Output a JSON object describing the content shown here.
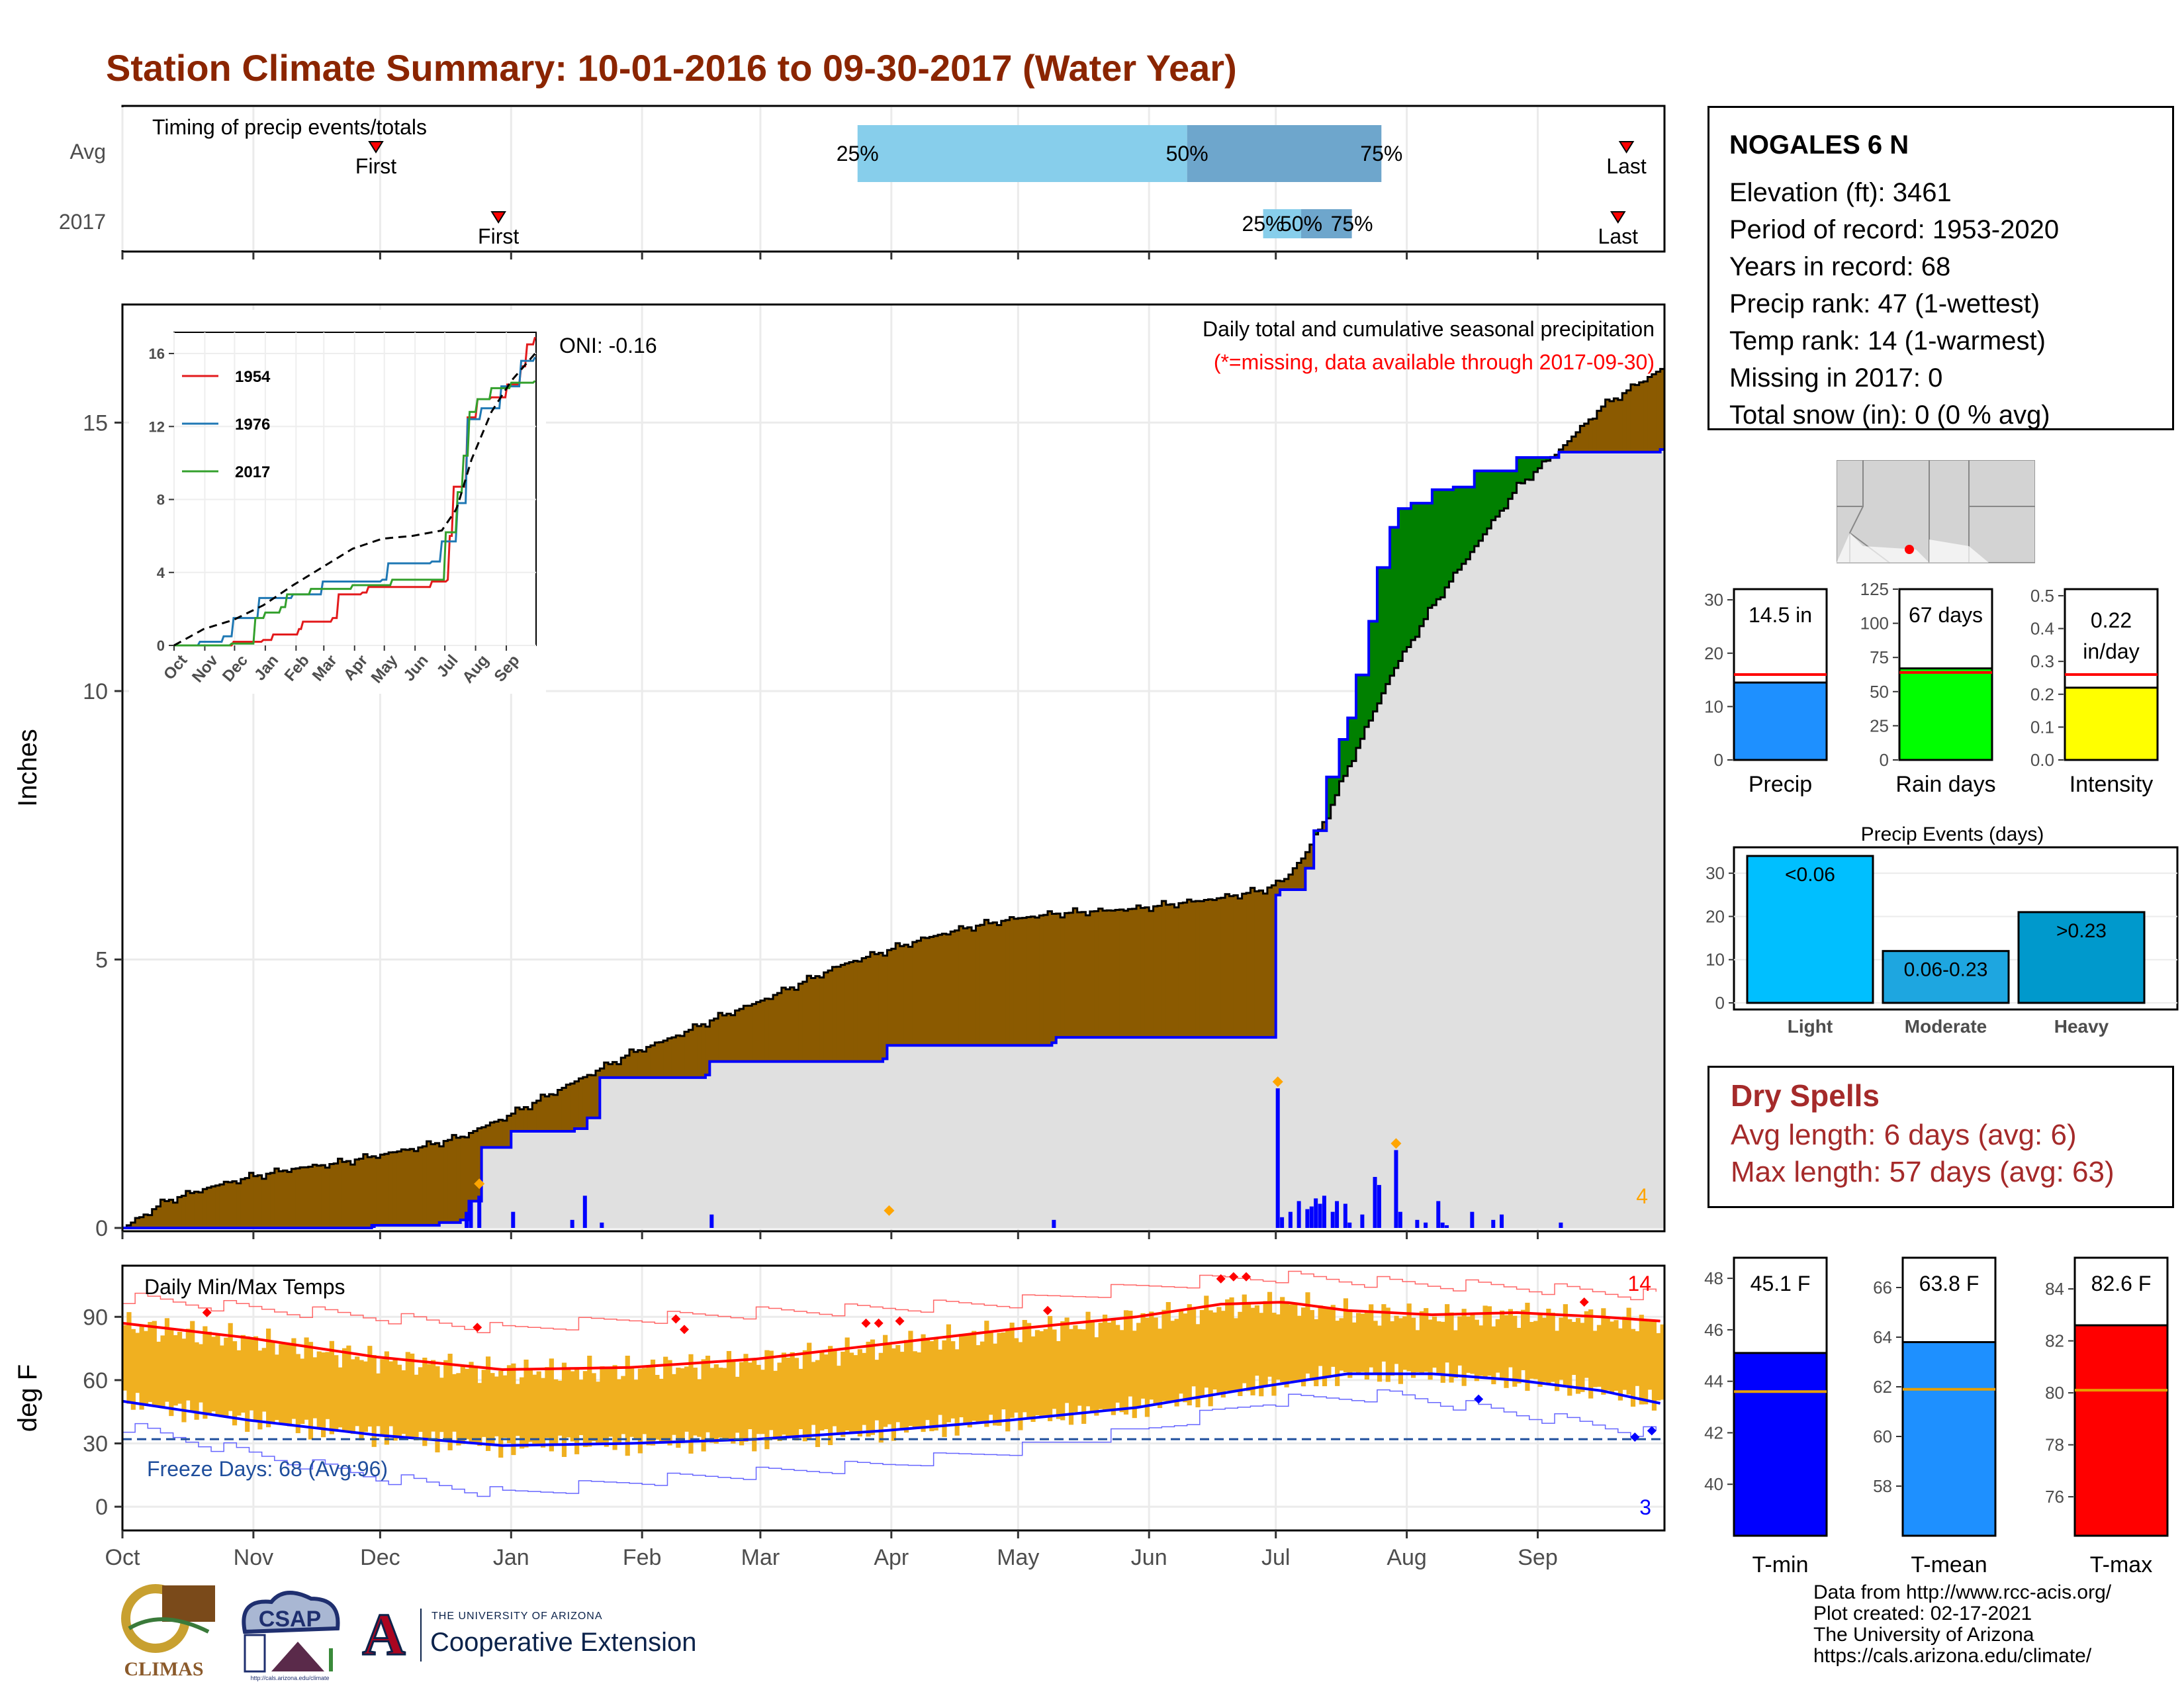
{
  "title": "Station Climate Summary: 10-01-2016 to 09-30-2017 (Water Year)",
  "timing": {
    "label": "Timing of precip events/totals",
    "rows": [
      "Avg",
      "2017"
    ],
    "first_label": "First",
    "last_label": "Last",
    "pct": [
      "25%",
      "50%",
      "75%"
    ],
    "avg": {
      "first_day": 60,
      "last_day": 356,
      "p25": 174,
      "p50": 252,
      "p75": 298
    },
    "y2017": {
      "first_day": 89,
      "last_day": 354,
      "p25": 270,
      "p50": 279,
      "p75": 291
    },
    "colors": {
      "light": "#87ceeb",
      "dark": "#6ea6cc",
      "marker": "#ff0000"
    }
  },
  "precip_panel": {
    "ylabel": "Inches",
    "ymax": 17.2,
    "yticks": [
      0,
      5,
      10,
      15
    ],
    "title": "Daily total and cumulative seasonal precipitation",
    "subtitle": "(*=missing, data available through 2017-09-30)",
    "oni": "ONI: -0.16",
    "count_label": "4",
    "colors": {
      "avg_fill": "#8b5a00",
      "above_fill": "#008000",
      "base_fill": "#e0e0e0",
      "line": "#0000ff",
      "marker": "#ffa500"
    },
    "avg_cumulative": [
      [
        0,
        0
      ],
      [
        10,
        0.5
      ],
      [
        20,
        0.75
      ],
      [
        30,
        0.95
      ],
      [
        40,
        1.1
      ],
      [
        50,
        1.2
      ],
      [
        60,
        1.35
      ],
      [
        70,
        1.5
      ],
      [
        80,
        1.7
      ],
      [
        90,
        2.05
      ],
      [
        100,
        2.45
      ],
      [
        110,
        2.85
      ],
      [
        120,
        3.25
      ],
      [
        130,
        3.55
      ],
      [
        140,
        3.9
      ],
      [
        150,
        4.2
      ],
      [
        160,
        4.55
      ],
      [
        170,
        4.9
      ],
      [
        180,
        5.15
      ],
      [
        190,
        5.4
      ],
      [
        200,
        5.6
      ],
      [
        210,
        5.75
      ],
      [
        220,
        5.85
      ],
      [
        230,
        5.9
      ],
      [
        240,
        5.95
      ],
      [
        250,
        6.05
      ],
      [
        260,
        6.15
      ],
      [
        270,
        6.3
      ],
      [
        275,
        6.5
      ],
      [
        280,
        7.0
      ],
      [
        285,
        7.7
      ],
      [
        290,
        8.6
      ],
      [
        300,
        10.3
      ],
      [
        310,
        11.6
      ],
      [
        320,
        12.7
      ],
      [
        330,
        13.8
      ],
      [
        340,
        14.5
      ],
      [
        350,
        15.3
      ],
      [
        360,
        15.8
      ],
      [
        364,
        16.0
      ]
    ],
    "obs_cumulative": [
      [
        0,
        0
      ],
      [
        58,
        0
      ],
      [
        59,
        0.05
      ],
      [
        75,
        0.1
      ],
      [
        80,
        0.15
      ],
      [
        82,
        0.5
      ],
      [
        85,
        1.5
      ],
      [
        92,
        1.8
      ],
      [
        107,
        1.85
      ],
      [
        110,
        2.05
      ],
      [
        113,
        2.8
      ],
      [
        138,
        2.85
      ],
      [
        139,
        3.1
      ],
      [
        180,
        3.15
      ],
      [
        181,
        3.4
      ],
      [
        220,
        3.45
      ],
      [
        221,
        3.55
      ],
      [
        272,
        3.55
      ],
      [
        273,
        6.2
      ],
      [
        274,
        6.3
      ],
      [
        280,
        6.7
      ],
      [
        282,
        7.4
      ],
      [
        285,
        8.4
      ],
      [
        288,
        9.1
      ],
      [
        290,
        9.5
      ],
      [
        292,
        10.3
      ],
      [
        295,
        11.3
      ],
      [
        297,
        12.3
      ],
      [
        300,
        13.05
      ],
      [
        302,
        13.4
      ],
      [
        305,
        13.5
      ],
      [
        310,
        13.75
      ],
      [
        315,
        13.8
      ],
      [
        320,
        14.1
      ],
      [
        330,
        14.35
      ],
      [
        340,
        14.45
      ],
      [
        364,
        14.5
      ]
    ],
    "daily_bars": [
      [
        59,
        0.05
      ],
      [
        81,
        0.3
      ],
      [
        82,
        0.5
      ],
      [
        84,
        0.6
      ],
      [
        92,
        0.3
      ],
      [
        106,
        0.15
      ],
      [
        109,
        0.6
      ],
      [
        113,
        0.1
      ],
      [
        139,
        0.25
      ],
      [
        220,
        0.15
      ],
      [
        273,
        2.6
      ],
      [
        274,
        0.2
      ],
      [
        276,
        0.3
      ],
      [
        278,
        0.5
      ],
      [
        280,
        0.35
      ],
      [
        281,
        0.4
      ],
      [
        282,
        0.55
      ],
      [
        283,
        0.45
      ],
      [
        284,
        0.6
      ],
      [
        286,
        0.3
      ],
      [
        287,
        0.5
      ],
      [
        289,
        0.45
      ],
      [
        290,
        0.1
      ],
      [
        293,
        0.25
      ],
      [
        296,
        0.95
      ],
      [
        297,
        0.8
      ],
      [
        301,
        1.45
      ],
      [
        302,
        0.3
      ],
      [
        306,
        0.15
      ],
      [
        308,
        0.1
      ],
      [
        311,
        0.5
      ],
      [
        312,
        0.1
      ],
      [
        313,
        0.05
      ],
      [
        319,
        0.3
      ],
      [
        324,
        0.15
      ],
      [
        326,
        0.25
      ],
      [
        340,
        0.1
      ]
    ],
    "markers": [
      [
        84,
        0.7
      ],
      [
        181,
        0.2
      ],
      [
        273,
        2.6
      ],
      [
        301,
        1.45
      ]
    ],
    "months": [
      "Oct",
      "Nov",
      "Dec",
      "Jan",
      "Feb",
      "Mar",
      "Apr",
      "May",
      "Jun",
      "Jul",
      "Aug",
      "Sep"
    ],
    "month_starts": [
      0,
      31,
      61,
      92,
      123,
      151,
      182,
      212,
      243,
      273,
      304,
      335
    ]
  },
  "inset": {
    "yticks": [
      0,
      4,
      8,
      12,
      16
    ],
    "series": [
      {
        "name": "1954",
        "color": "#e31a1c",
        "values": [
          [
            0,
            0
          ],
          [
            40,
            0
          ],
          [
            60,
            0.2
          ],
          [
            90,
            0.3
          ],
          [
            100,
            0.6
          ],
          [
            110,
            0.6
          ],
          [
            125,
            0.9
          ],
          [
            130,
            1.3
          ],
          [
            160,
            1.5
          ],
          [
            165,
            2.8
          ],
          [
            190,
            2.9
          ],
          [
            195,
            3.2
          ],
          [
            255,
            3.2
          ],
          [
            260,
            3.5
          ],
          [
            275,
            3.6
          ],
          [
            278,
            6.0
          ],
          [
            282,
            8.7
          ],
          [
            295,
            12.5
          ],
          [
            305,
            13.5
          ],
          [
            320,
            13.6
          ],
          [
            335,
            14.3
          ],
          [
            350,
            15.3
          ],
          [
            355,
            16.5
          ],
          [
            364,
            16.9
          ]
        ]
      },
      {
        "name": "1976",
        "color": "#1f78b4",
        "values": [
          [
            0,
            0
          ],
          [
            25,
            0.2
          ],
          [
            50,
            0.5
          ],
          [
            60,
            1.5
          ],
          [
            75,
            1.5
          ],
          [
            85,
            2.6
          ],
          [
            110,
            2.6
          ],
          [
            120,
            2.8
          ],
          [
            140,
            2.8
          ],
          [
            150,
            3.5
          ],
          [
            210,
            3.6
          ],
          [
            215,
            4.5
          ],
          [
            260,
            4.6
          ],
          [
            270,
            5.7
          ],
          [
            285,
            7.8
          ],
          [
            295,
            12.4
          ],
          [
            310,
            13.0
          ],
          [
            330,
            14.2
          ],
          [
            350,
            15.6
          ],
          [
            364,
            15.8
          ]
        ]
      },
      {
        "name": "2017",
        "color": "#33a02c",
        "values": [
          [
            0,
            0
          ],
          [
            58,
            0.1
          ],
          [
            82,
            1.5
          ],
          [
            92,
            1.8
          ],
          [
            107,
            2.1
          ],
          [
            113,
            2.8
          ],
          [
            138,
            3.1
          ],
          [
            180,
            3.3
          ],
          [
            220,
            3.6
          ],
          [
            272,
            3.6
          ],
          [
            273,
            6.2
          ],
          [
            285,
            8.4
          ],
          [
            292,
            10.4
          ],
          [
            297,
            12.8
          ],
          [
            305,
            13.5
          ],
          [
            320,
            14.1
          ],
          [
            340,
            14.4
          ],
          [
            364,
            14.5
          ]
        ]
      },
      {
        "name": "",
        "color": "#000000",
        "dash": true,
        "values": [
          [
            0,
            0
          ],
          [
            30,
            0.9
          ],
          [
            60,
            1.4
          ],
          [
            90,
            2.2
          ],
          [
            120,
            3.3
          ],
          [
            150,
            4.3
          ],
          [
            180,
            5.3
          ],
          [
            210,
            5.85
          ],
          [
            240,
            6.0
          ],
          [
            270,
            6.3
          ],
          [
            285,
            7.5
          ],
          [
            300,
            10.2
          ],
          [
            320,
            12.8
          ],
          [
            340,
            14.5
          ],
          [
            364,
            16.0
          ]
        ]
      }
    ]
  },
  "temp_panel": {
    "ylabel": "deg F",
    "title": "Daily Min/Max Temps",
    "ymin": -10,
    "ymax": 113,
    "yticks": [
      0,
      30,
      60,
      90
    ],
    "freeze": "Freeze Days: 68 (Avg:96)",
    "hot_count": "14",
    "cold_count": "3",
    "colors": {
      "bar": "#f0b020",
      "tmax_avg": "#ff0000",
      "tmin_avg": "#0000ff",
      "freeze_line": "#1f4e9c"
    },
    "tmax_avg": [
      [
        0,
        87
      ],
      [
        30,
        80
      ],
      [
        60,
        71
      ],
      [
        90,
        65
      ],
      [
        120,
        66
      ],
      [
        150,
        70
      ],
      [
        180,
        77
      ],
      [
        210,
        84
      ],
      [
        240,
        90
      ],
      [
        260,
        96
      ],
      [
        275,
        97
      ],
      [
        290,
        93
      ],
      [
        310,
        91
      ],
      [
        330,
        92
      ],
      [
        350,
        90
      ],
      [
        364,
        88
      ]
    ],
    "tmin_avg": [
      [
        0,
        50
      ],
      [
        30,
        41
      ],
      [
        60,
        34
      ],
      [
        90,
        29
      ],
      [
        120,
        30
      ],
      [
        150,
        32
      ],
      [
        180,
        36
      ],
      [
        210,
        41
      ],
      [
        240,
        47
      ],
      [
        270,
        57
      ],
      [
        290,
        63
      ],
      [
        310,
        63
      ],
      [
        330,
        60
      ],
      [
        350,
        55
      ],
      [
        364,
        49
      ]
    ],
    "rec_max": [
      [
        0,
        99
      ],
      [
        30,
        94
      ],
      [
        60,
        90
      ],
      [
        90,
        84
      ],
      [
        120,
        89
      ],
      [
        150,
        92
      ],
      [
        180,
        94
      ],
      [
        210,
        97
      ],
      [
        240,
        104
      ],
      [
        260,
        108
      ],
      [
        275,
        109
      ],
      [
        300,
        106
      ],
      [
        330,
        104
      ],
      [
        364,
        100
      ]
    ],
    "rec_min": [
      [
        0,
        38
      ],
      [
        30,
        25
      ],
      [
        60,
        14
      ],
      [
        90,
        6
      ],
      [
        120,
        12
      ],
      [
        150,
        16
      ],
      [
        180,
        20
      ],
      [
        210,
        27
      ],
      [
        240,
        36
      ],
      [
        270,
        50
      ],
      [
        300,
        53
      ],
      [
        330,
        44
      ],
      [
        364,
        34
      ]
    ]
  },
  "station": {
    "name": "NOGALES 6 N",
    "lines": [
      "Elevation (ft): 3461",
      "Period of record: 1953-2020",
      "Years in record: 68",
      "Precip rank: 47 (1-wettest)",
      "Temp rank: 14 (1-warmest)",
      "Missing in 2017: 0",
      "Total snow (in): 0 (0 % avg)"
    ]
  },
  "summary_bars": [
    {
      "label": "Precip",
      "value_text": "14.5 in",
      "value": 14.5,
      "avg": 16.0,
      "max": 32,
      "ticks": [
        "0",
        "10",
        "20",
        "30"
      ],
      "tickvals": [
        0,
        10,
        20,
        30
      ],
      "color": "#1e90ff"
    },
    {
      "label": "Rain days",
      "value_text": "67 days",
      "value": 67,
      "avg": 64,
      "max": 125,
      "ticks": [
        "0",
        "25",
        "50",
        "75",
        "100",
        "125"
      ],
      "tickvals": [
        0,
        25,
        50,
        75,
        100,
        125
      ],
      "color": "#00ff00"
    },
    {
      "label": "Intensity",
      "value_text": "0.22",
      "value_text2": "in/day",
      "value": 0.22,
      "avg": 0.26,
      "max": 0.52,
      "ticks": [
        "0.0",
        "0.1",
        "0.2",
        "0.3",
        "0.4",
        "0.5"
      ],
      "tickvals": [
        0,
        0.1,
        0.2,
        0.3,
        0.4,
        0.5
      ],
      "color": "#ffff00"
    }
  ],
  "events": {
    "title": "Precip Events (days)",
    "yticks": [
      0,
      10,
      20,
      30
    ],
    "ymax": 36,
    "bars": [
      {
        "category": "Light",
        "label": "<0.06",
        "value": 34,
        "color": "#00bfff"
      },
      {
        "category": "Moderate",
        "label": "0.06-0.23",
        "value": 12,
        "color": "#1ea6e0"
      },
      {
        "category": "Heavy",
        "label": ">0.23",
        "value": 21,
        "color": "#0099cc"
      }
    ]
  },
  "dry_spells": {
    "title": "Dry Spells",
    "avg": "Avg length: 6 days (avg: 6)",
    "max": "Max length: 57 days (avg: 63)"
  },
  "temp_bars": [
    {
      "label": "T-min",
      "value_text": "45.1 F",
      "value": 45.1,
      "avg": 43.6,
      "min": 38,
      "max": 48.8,
      "tickvals": [
        40,
        42,
        44,
        46,
        48
      ],
      "color": "#0000ff"
    },
    {
      "label": "T-mean",
      "value_text": "63.8 F",
      "value": 63.8,
      "avg": 61.9,
      "min": 56,
      "max": 67.2,
      "tickvals": [
        58,
        60,
        62,
        64,
        66
      ],
      "color": "#1e90ff"
    },
    {
      "label": "T-max",
      "value_text": "82.6 F",
      "value": 82.6,
      "avg": 80.1,
      "min": 74.5,
      "max": 85.2,
      "tickvals": [
        76,
        78,
        80,
        82,
        84
      ],
      "color": "#ff0000"
    }
  ],
  "credits": [
    "Data from http://www.rcc-acis.org/",
    "Plot created: 02-17-2021",
    "The University of Arizona",
    "https://cals.arizona.edu/climate/"
  ],
  "logos": {
    "climas": "CLIMAS",
    "csap": "CSAP",
    "csap_url": "http://cals.arizona.edu/climate",
    "ua_small": "THE UNIVERSITY OF ARIZONA",
    "ua_big": "Cooperative Extension",
    "ua_letter": "A"
  },
  "chart_data": [
    {
      "type": "area",
      "title": "Daily total and cumulative seasonal precipitation",
      "ylabel": "Inches",
      "ylim": [
        0,
        17.2
      ],
      "x": [
        "Oct",
        "Nov",
        "Dec",
        "Jan",
        "Feb",
        "Mar",
        "Apr",
        "May",
        "Jun",
        "Jul",
        "Aug",
        "Sep"
      ],
      "series": [
        {
          "name": "2017",
          "total": 14.5
        },
        {
          "name": "Avg",
          "total": 16.0
        }
      ]
    },
    {
      "type": "bar",
      "title": "Precip Events (days)",
      "categories": [
        "Light",
        "Moderate",
        "Heavy"
      ],
      "values": [
        34,
        12,
        21
      ]
    },
    {
      "type": "bar",
      "categories": [
        "T-min",
        "T-mean",
        "T-max"
      ],
      "values": [
        45.1,
        63.8,
        82.6
      ]
    },
    {
      "type": "bar",
      "categories": [
        "Precip",
        "Rain days",
        "Intensity"
      ],
      "values": [
        14.5,
        67,
        0.22
      ]
    }
  ]
}
